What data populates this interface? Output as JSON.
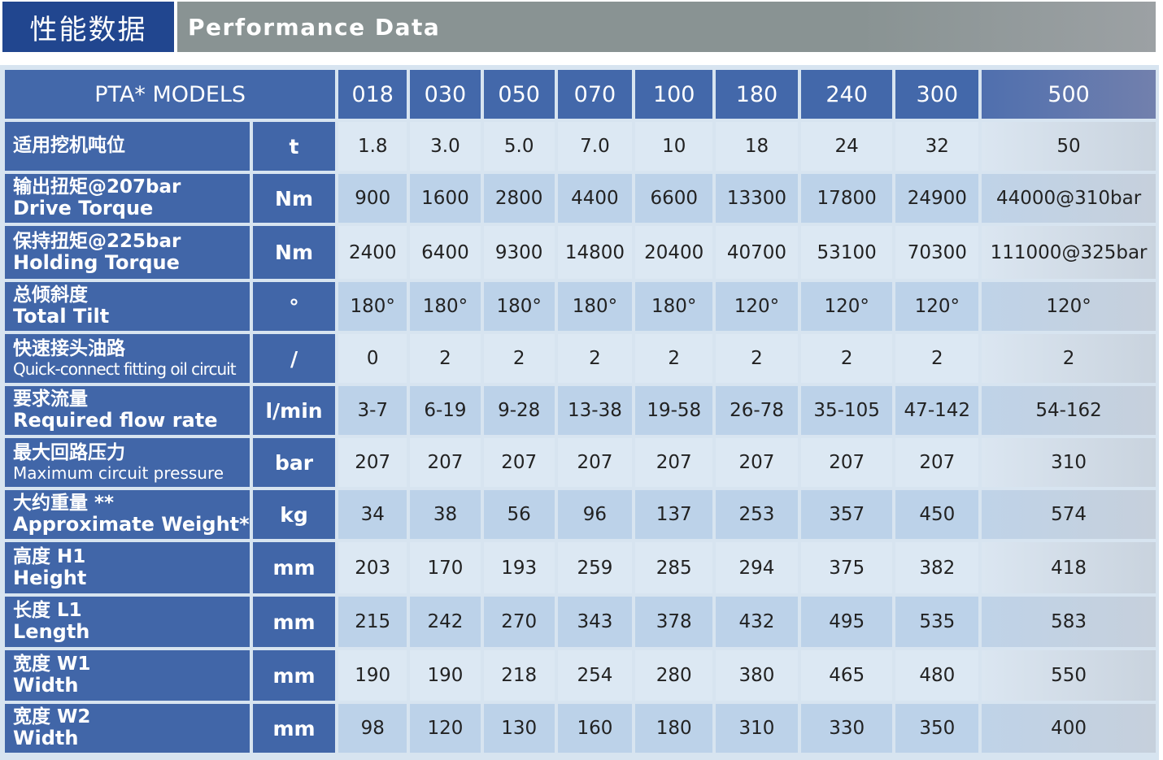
{
  "header": {
    "title_cn": "性能数据",
    "title_en": "Performance Data"
  },
  "colors": {
    "header_blue": "#21468f",
    "header_gray": "#899393",
    "cell_blue": "#4166a8",
    "row_light": "#dce8f3",
    "row_dark": "#bcd2e9"
  },
  "table": {
    "models_label": "PTA* MODELS",
    "models": [
      "018",
      "030",
      "050",
      "070",
      "100",
      "180",
      "240",
      "300",
      "500"
    ],
    "rows": [
      {
        "cn": "适用挖机吨位",
        "en": "",
        "unit": "t",
        "values": [
          "1.8",
          "3.0",
          "5.0",
          "7.0",
          "10",
          "18",
          "24",
          "32",
          "50"
        ]
      },
      {
        "cn": "输出扭矩@207bar",
        "en": "Drive Torque",
        "unit": "Nm",
        "values": [
          "900",
          "1600",
          "2800",
          "4400",
          "6600",
          "13300",
          "17800",
          "24900",
          "44000@310bar"
        ]
      },
      {
        "cn": "保持扭矩@225bar",
        "en": "Holding Torque",
        "unit": "Nm",
        "values": [
          "2400",
          "6400",
          "9300",
          "14800",
          "20400",
          "40700",
          "53100",
          "70300",
          "111000@325bar"
        ]
      },
      {
        "cn": "总倾斜度",
        "en": "Total Tilt",
        "unit": "°",
        "values": [
          "180°",
          "180°",
          "180°",
          "180°",
          "180°",
          "120°",
          "120°",
          "120°",
          "120°"
        ]
      },
      {
        "cn": "快速接头油路",
        "en": "Quick-connect fitting oil circuit",
        "unit": "/",
        "values": [
          "0",
          "2",
          "2",
          "2",
          "2",
          "2",
          "2",
          "2",
          "2"
        ]
      },
      {
        "cn": "要求流量",
        "en": "Required flow rate",
        "unit": "l/min",
        "values": [
          "3-7",
          "6-19",
          "9-28",
          "13-38",
          "19-58",
          "26-78",
          "35-105",
          "47-142",
          "54-162"
        ]
      },
      {
        "cn": "最大回路压力",
        "en": "Maximum circuit pressure",
        "unit": "bar",
        "values": [
          "207",
          "207",
          "207",
          "207",
          "207",
          "207",
          "207",
          "207",
          "310"
        ]
      },
      {
        "cn": "大约重量  **",
        "en": "Approximate Weight*",
        "unit": "kg",
        "values": [
          "34",
          "38",
          "56",
          "96",
          "137",
          "253",
          "357",
          "450",
          "574"
        ]
      },
      {
        "cn": "高度 H1",
        "en": "Height",
        "unit": "mm",
        "values": [
          "203",
          "170",
          "193",
          "259",
          "285",
          "294",
          "375",
          "382",
          "418"
        ]
      },
      {
        "cn": "长度 L1",
        "en": "Length",
        "unit": "mm",
        "values": [
          "215",
          "242",
          "270",
          "343",
          "378",
          "432",
          "495",
          "535",
          "583"
        ]
      },
      {
        "cn": "宽度 W1",
        "en": "Width",
        "unit": "mm",
        "values": [
          "190",
          "190",
          "218",
          "254",
          "280",
          "380",
          "465",
          "480",
          "550"
        ]
      },
      {
        "cn": "宽度 W2",
        "en": "Width",
        "unit": "mm",
        "values": [
          "98",
          "120",
          "130",
          "160",
          "180",
          "310",
          "330",
          "350",
          "400"
        ]
      }
    ]
  }
}
